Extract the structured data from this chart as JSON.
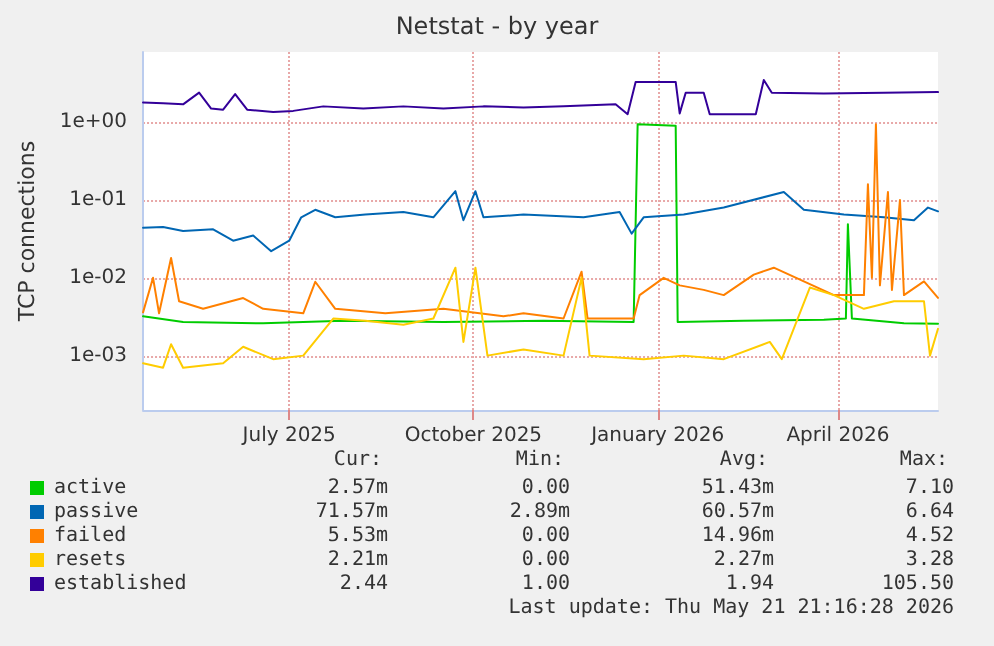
{
  "chart_data": {
    "type": "line",
    "title": "Netstat - by year",
    "ylabel": "TCP connections",
    "log": "y",
    "ylim": [
      0.0002,
      8
    ],
    "yticks": [
      {
        "value": 0.001,
        "label": "1e-03"
      },
      {
        "value": 0.01,
        "label": "1e-02"
      },
      {
        "value": 0.1,
        "label": "1e-01"
      },
      {
        "value": 1,
        "label": "1e+00"
      }
    ],
    "xlim": [
      "2025-04-19",
      "2026-05-21"
    ],
    "xticks": [
      {
        "value": "2025-07-01",
        "label": "July 2025"
      },
      {
        "value": "2025-10-01",
        "label": "October 2025"
      },
      {
        "value": "2026-01-01",
        "label": "January 2026"
      },
      {
        "value": "2026-04-01",
        "label": "April 2026"
      }
    ],
    "grid": true,
    "legend": "bottom left",
    "marker": "none",
    "line_style": "solid",
    "series": [
      {
        "name": "active",
        "color": "#00cc00",
        "x": [
          "2025-04-19",
          "2025-05-09",
          "2025-06-18",
          "2025-07-28",
          "2025-09-16",
          "2025-11-05",
          "2025-12-20",
          "2025-12-22",
          "2026-01-10",
          "2026-01-11",
          "2026-02-13",
          "2026-03-25",
          "2026-04-05",
          "2026-04-06",
          "2026-04-08",
          "2026-05-04",
          "2026-05-21"
        ],
        "values": [
          0.0032,
          0.0027,
          0.0026,
          0.0028,
          0.0027,
          0.0028,
          0.0027,
          0.94,
          0.9,
          0.0027,
          0.0028,
          0.0029,
          0.003,
          0.049,
          0.003,
          0.0026,
          0.00257
        ]
      },
      {
        "name": "passive",
        "color": "#0066b3",
        "x": [
          "2025-04-19",
          "2025-04-29",
          "2025-05-09",
          "2025-05-24",
          "2025-06-03",
          "2025-06-13",
          "2025-06-22",
          "2025-07-01",
          "2025-07-07",
          "2025-07-14",
          "2025-07-24",
          "2025-08-08",
          "2025-08-27",
          "2025-09-11",
          "2025-09-22",
          "2025-09-26",
          "2025-10-02",
          "2025-10-06",
          "2025-10-26",
          "2025-11-25",
          "2025-12-13",
          "2025-12-19",
          "2025-12-25",
          "2026-01-14",
          "2026-02-03",
          "2026-03-05",
          "2026-03-15",
          "2026-04-04",
          "2026-04-24",
          "2026-05-09",
          "2026-05-16",
          "2026-05-21"
        ],
        "values": [
          0.044,
          0.045,
          0.04,
          0.042,
          0.03,
          0.035,
          0.022,
          0.03,
          0.06,
          0.075,
          0.06,
          0.065,
          0.07,
          0.06,
          0.13,
          0.055,
          0.13,
          0.06,
          0.065,
          0.06,
          0.07,
          0.037,
          0.06,
          0.065,
          0.08,
          0.127,
          0.075,
          0.065,
          0.06,
          0.055,
          0.08,
          0.0716
        ]
      },
      {
        "name": "failed",
        "color": "#ff8000",
        "x": [
          "2025-04-19",
          "2025-04-24",
          "2025-04-27",
          "2025-05-03",
          "2025-05-07",
          "2025-05-19",
          "2025-06-08",
          "2025-06-18",
          "2025-07-08",
          "2025-07-14",
          "2025-07-24",
          "2025-08-18",
          "2025-09-16",
          "2025-10-16",
          "2025-10-26",
          "2025-11-15",
          "2025-11-24",
          "2025-11-27",
          "2025-12-20",
          "2025-12-23",
          "2026-01-04",
          "2026-01-12",
          "2026-01-24",
          "2026-02-03",
          "2026-02-18",
          "2026-02-28",
          "2026-03-15",
          "2026-03-30",
          "2026-04-14",
          "2026-04-16",
          "2026-04-18",
          "2026-04-20",
          "2026-04-22",
          "2026-04-26",
          "2026-04-28",
          "2026-05-02",
          "2026-05-04",
          "2026-05-14",
          "2026-05-21"
        ],
        "values": [
          0.0036,
          0.01,
          0.0035,
          0.018,
          0.005,
          0.004,
          0.0055,
          0.004,
          0.0035,
          0.0089,
          0.004,
          0.0035,
          0.004,
          0.0032,
          0.0035,
          0.003,
          0.012,
          0.003,
          0.003,
          0.006,
          0.01,
          0.008,
          0.007,
          0.006,
          0.011,
          0.0135,
          0.009,
          0.006,
          0.006,
          0.16,
          0.01,
          0.94,
          0.008,
          0.127,
          0.007,
          0.1,
          0.006,
          0.009,
          0.00553
        ]
      },
      {
        "name": "resets",
        "color": "#ffcc00",
        "x": [
          "2025-04-19",
          "2025-04-29",
          "2025-05-03",
          "2025-05-09",
          "2025-05-29",
          "2025-06-08",
          "2025-06-23",
          "2025-07-08",
          "2025-07-16",
          "2025-07-23",
          "2025-08-08",
          "2025-08-27",
          "2025-09-11",
          "2025-09-22",
          "2025-09-26",
          "2025-10-02",
          "2025-10-08",
          "2025-10-26",
          "2025-11-15",
          "2025-11-24",
          "2025-11-28",
          "2025-12-25",
          "2026-01-14",
          "2026-02-03",
          "2026-02-26",
          "2026-03-04",
          "2026-03-18",
          "2026-03-30",
          "2026-04-14",
          "2026-04-29",
          "2026-05-14",
          "2026-05-17",
          "2026-05-21"
        ],
        "values": [
          0.0008,
          0.0007,
          0.0014,
          0.0007,
          0.0008,
          0.0013,
          0.0009,
          0.001,
          0.0018,
          0.003,
          0.0028,
          0.0025,
          0.003,
          0.0135,
          0.0015,
          0.0135,
          0.001,
          0.0012,
          0.001,
          0.01,
          0.001,
          0.0009,
          0.001,
          0.0009,
          0.0015,
          0.0009,
          0.0075,
          0.006,
          0.004,
          0.005,
          0.005,
          0.001,
          0.00221
        ]
      },
      {
        "name": "established",
        "color": "#330099",
        "x": [
          "2025-04-19",
          "2025-04-29",
          "2025-05-09",
          "2025-05-17",
          "2025-05-23",
          "2025-05-29",
          "2025-06-04",
          "2025-06-10",
          "2025-06-23",
          "2025-07-03",
          "2025-07-18",
          "2025-08-07",
          "2025-08-27",
          "2025-09-16",
          "2025-10-06",
          "2025-10-26",
          "2025-11-15",
          "2025-12-11",
          "2025-12-17",
          "2025-12-21",
          "2026-01-10",
          "2026-01-12",
          "2026-01-15",
          "2026-01-24",
          "2026-01-27",
          "2026-02-19",
          "2026-02-23",
          "2026-02-27",
          "2026-03-25",
          "2026-04-24",
          "2026-05-21"
        ],
        "values": [
          1.8,
          1.75,
          1.7,
          2.4,
          1.5,
          1.45,
          2.3,
          1.45,
          1.35,
          1.4,
          1.6,
          1.5,
          1.6,
          1.5,
          1.6,
          1.55,
          1.6,
          1.7,
          1.27,
          3.3,
          3.3,
          1.3,
          2.4,
          2.4,
          1.27,
          1.27,
          3.5,
          2.4,
          2.35,
          2.4,
          2.44
        ]
      }
    ],
    "annotations": [
      "Cur:",
      "Min:",
      "Avg:",
      "Max:",
      "2.57m",
      "0.00",
      "51.43m",
      "7.10",
      "71.57m",
      "2.89m",
      "60.57m",
      "6.64",
      "5.53m",
      "0.00",
      "14.96m",
      "4.52",
      "2.21m",
      "0.00",
      "2.27m",
      "3.28",
      "2.44",
      "1.00",
      "1.94",
      "105.50",
      "Last update: Thu May 21 21:16:28 2026"
    ]
  }
}
